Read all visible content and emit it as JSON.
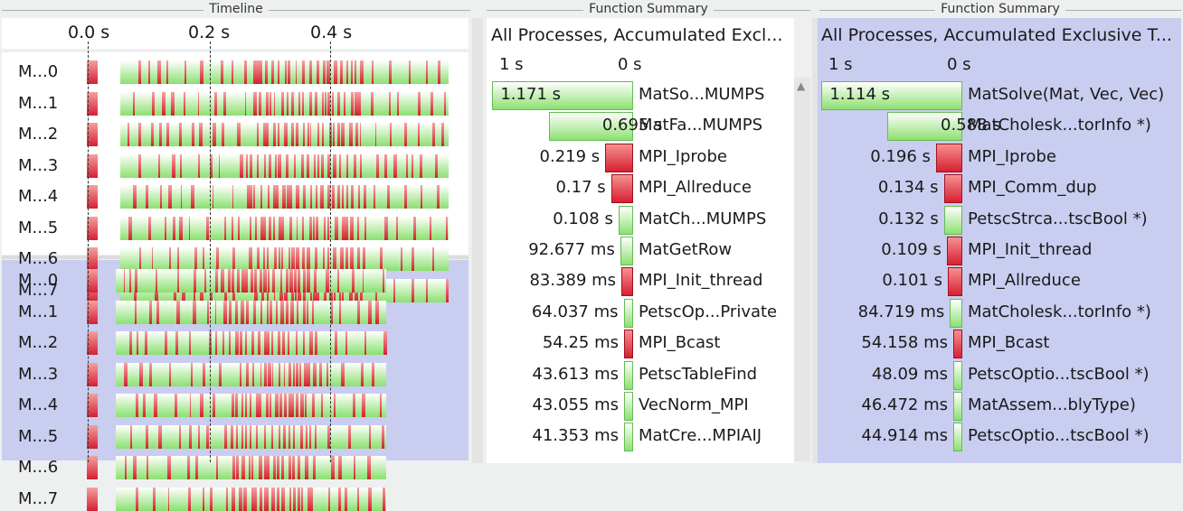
{
  "timeline": {
    "title": "Timeline",
    "ticks": [
      "0.0 s",
      "0.2 s",
      "0.4 s"
    ],
    "top_processes": [
      "M...0",
      "M...1",
      "M...2",
      "M...3",
      "M...4",
      "M...5",
      "M...6",
      "M...7"
    ],
    "bottom_processes": [
      "M...0",
      "M...1",
      "M...2",
      "M...3",
      "M...4",
      "M...5",
      "M...6",
      "M...7"
    ]
  },
  "summary_left": {
    "title": "Function Summary",
    "header": "All Processes, Accumulated Excl...",
    "scale_left": "1 s",
    "scale_right": "0 s",
    "rows": [
      {
        "value": "1.171 s",
        "name": "MatSo...MUMPS",
        "frac": 1.0,
        "color": "green"
      },
      {
        "value": "0.695 s",
        "name": "MatFa...MUMPS",
        "frac": 0.594,
        "color": "green"
      },
      {
        "value": "0.219 s",
        "name": "MPI_Iprobe",
        "frac": 0.187,
        "color": "red"
      },
      {
        "value": "0.17 s",
        "name": "MPI_Allreduce",
        "frac": 0.145,
        "color": "red"
      },
      {
        "value": "0.108 s",
        "name": "MatCh...MUMPS",
        "frac": 0.092,
        "color": "green"
      },
      {
        "value": "92.677 ms",
        "name": "MatGetRow",
        "frac": 0.079,
        "color": "green"
      },
      {
        "value": "83.389 ms",
        "name": "MPI_Init_thread",
        "frac": 0.071,
        "color": "red"
      },
      {
        "value": "64.037 ms",
        "name": "PetscOp...Private",
        "frac": 0.055,
        "color": "green"
      },
      {
        "value": "54.25 ms",
        "name": "MPI_Bcast",
        "frac": 0.046,
        "color": "red"
      },
      {
        "value": "43.613 ms",
        "name": "PetscTableFind",
        "frac": 0.037,
        "color": "green"
      },
      {
        "value": "43.055 ms",
        "name": "VecNorm_MPI",
        "frac": 0.037,
        "color": "green"
      },
      {
        "value": "41.353 ms",
        "name": "MatCre...MPIAIJ",
        "frac": 0.035,
        "color": "green"
      }
    ]
  },
  "summary_right": {
    "title": "Function Summary",
    "header": "All Processes, Accumulated Exclusive T...",
    "scale_left": "1 s",
    "scale_right": "0 s",
    "rows": [
      {
        "value": "1.114 s",
        "name": "MatSolve(Mat, Vec, Vec)",
        "frac": 1.0,
        "color": "green"
      },
      {
        "value": "0.588 s",
        "name": "MatCholesk...torInfo *)",
        "frac": 0.528,
        "color": "green"
      },
      {
        "value": "0.196 s",
        "name": "MPI_Iprobe",
        "frac": 0.176,
        "color": "red"
      },
      {
        "value": "0.134 s",
        "name": "MPI_Comm_dup",
        "frac": 0.12,
        "color": "red"
      },
      {
        "value": "0.132 s",
        "name": "PetscStrca...tscBool *)",
        "frac": 0.118,
        "color": "green"
      },
      {
        "value": "0.109 s",
        "name": "MPI_Init_thread",
        "frac": 0.098,
        "color": "red"
      },
      {
        "value": "0.101 s",
        "name": "MPI_Allreduce",
        "frac": 0.091,
        "color": "red"
      },
      {
        "value": "84.719 ms",
        "name": "MatCholesk...torInfo *)",
        "frac": 0.076,
        "color": "green"
      },
      {
        "value": "54.158 ms",
        "name": "MPI_Bcast",
        "frac": 0.049,
        "color": "red"
      },
      {
        "value": "48.09 ms",
        "name": "PetscOptio...tscBool *)",
        "frac": 0.043,
        "color": "green"
      },
      {
        "value": "46.472 ms",
        "name": "MatAssem...blyType)",
        "frac": 0.042,
        "color": "green"
      },
      {
        "value": "44.914 ms",
        "name": "PetscOptio...tscBool *)",
        "frac": 0.04,
        "color": "green"
      }
    ]
  },
  "colors": {
    "green": "#8de070",
    "red": "#d82030",
    "selection": "#c9cdf0"
  },
  "icons": {
    "scroll_up": "triangle-up-icon"
  }
}
